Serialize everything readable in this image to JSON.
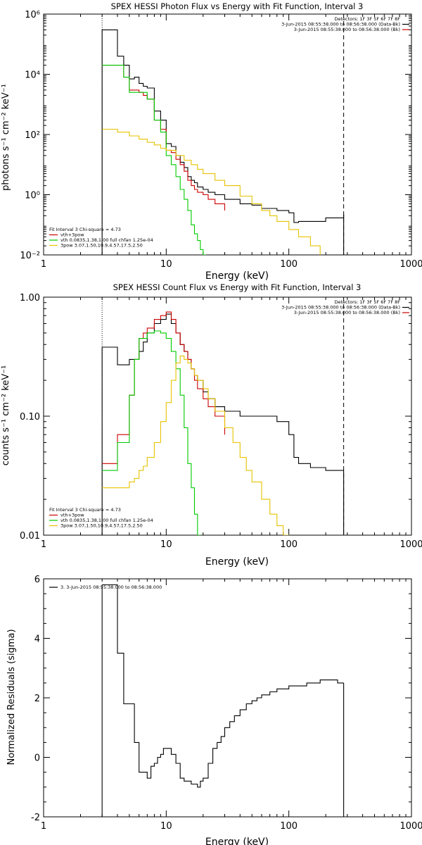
{
  "colors": {
    "total": "#000000",
    "sum": "#cc0000",
    "vth": "#00cc00",
    "pow": "#e6c200"
  },
  "chart_data": [
    {
      "type": "line",
      "title": "SPEX HESSI Photon Flux vs Energy with Fit Function, Interval 3",
      "xlabel": "Energy (keV)",
      "ylabel": "photons s⁻¹ cm⁻² keV⁻¹",
      "xscale": "log",
      "yscale": "log",
      "xlim": [
        1,
        1000
      ],
      "ylim": [
        0.01,
        1000000
      ],
      "xticks": [
        {
          "v": 1,
          "label": "1"
        },
        {
          "v": 10,
          "label": "10"
        },
        {
          "v": 100,
          "label": "100"
        },
        {
          "v": 1000,
          "label": "1000"
        }
      ],
      "yticks": [
        {
          "v": 0.01,
          "label": "10⁻²"
        },
        {
          "v": 1,
          "label": "10⁰"
        },
        {
          "v": 100,
          "label": "10²"
        },
        {
          "v": 10000,
          "label": "10⁴"
        },
        {
          "v": 1000000,
          "label": "10⁶"
        }
      ],
      "vlines": [
        {
          "x": 3,
          "style": "dotted",
          "color": "#000000"
        },
        {
          "x": 280,
          "style": "dashed",
          "color": "#000000"
        }
      ],
      "top_legend": [
        {
          "text": "Detectors: 1F 3F 5F 6F 7F 8F",
          "color": ""
        },
        {
          "text": "3-Jun-2015 08:55:38.000 to 08:56:38.000 (Data-Bk)",
          "color": "#000000"
        },
        {
          "text": "3-Jun-2015 08:55:38.000 to 08:56:38.000 (Bk)",
          "color": "#cc0000"
        }
      ],
      "fit_legend": [
        {
          "text": "Fit Interval 3   Chi-square = 4.73",
          "color": ""
        },
        {
          "text": "vth+3pow",
          "color": "#cc0000"
        },
        {
          "text": "vth 0.0835,1.38,1.00  full chfan 1.25e-04",
          "color": "#00cc00"
        },
        {
          "text": "3pow 3.07,1.50,10.9,4.57,17.5,2.50",
          "color": "#e6c200"
        }
      ],
      "series": [
        {
          "color": "#000000",
          "x": [
            3,
            3.5,
            4,
            4.5,
            5,
            5.5,
            6,
            6.5,
            7,
            8,
            9,
            10,
            11,
            12,
            13,
            14,
            15,
            16,
            17,
            18,
            20,
            22,
            25,
            30,
            40,
            50,
            60,
            80,
            100,
            110,
            120,
            150,
            200,
            280
          ],
          "y": [
            300000,
            300000,
            40000,
            20000,
            7000,
            8000,
            5000,
            4000,
            3500,
            600,
            300,
            50,
            40,
            20,
            12,
            8,
            4,
            3,
            2.5,
            1.8,
            1.5,
            1.2,
            1.0,
            0.7,
            0.5,
            0.45,
            0.35,
            0.3,
            0.25,
            0.12,
            0.13,
            0.13,
            0.17,
            0.22
          ]
        },
        {
          "color": "#cc0000",
          "x": [
            3,
            3.5,
            4,
            4.5,
            5,
            5.5,
            6,
            6.5,
            7,
            8,
            9,
            10,
            11,
            12,
            13,
            14,
            15,
            16,
            17,
            18,
            20,
            22,
            25,
            30
          ],
          "y": [
            20000,
            20000,
            20000,
            8000,
            3000,
            3000,
            2500,
            2000,
            1500,
            300,
            150,
            30,
            25,
            15,
            10,
            6,
            3,
            2,
            1.5,
            1.2,
            1.0,
            0.7,
            0.5,
            0.3
          ]
        },
        {
          "color": "#00cc00",
          "x": [
            3,
            3.5,
            4,
            4.5,
            5,
            6,
            7,
            8,
            9,
            10,
            11,
            12,
            13,
            14,
            15,
            16,
            17,
            18,
            19,
            20,
            21
          ],
          "y": [
            20000,
            20000,
            20000,
            8000,
            2500,
            2500,
            1500,
            300,
            120,
            20,
            10,
            4,
            1.5,
            0.7,
            0.3,
            0.1,
            0.05,
            0.03,
            0.015,
            0.01,
            0.008
          ]
        },
        {
          "color": "#e6c200",
          "x": [
            3,
            3.5,
            4,
            5,
            6,
            7,
            8,
            9,
            10,
            12,
            14,
            16,
            18,
            20,
            25,
            30,
            40,
            50,
            60,
            70,
            80,
            100,
            120,
            150,
            180
          ],
          "y": [
            150,
            150,
            120,
            90,
            70,
            55,
            45,
            35,
            30,
            20,
            14,
            10,
            7,
            5,
            3,
            2,
            0.9,
            0.5,
            0.3,
            0.2,
            0.13,
            0.07,
            0.04,
            0.02,
            0.01
          ]
        }
      ]
    },
    {
      "type": "line",
      "title": "SPEX HESSI Count Flux vs Energy with Fit Function, Interval 3",
      "xlabel": "Energy (keV)",
      "ylabel": "counts s⁻¹ cm⁻² keV⁻¹",
      "xscale": "log",
      "yscale": "log",
      "xlim": [
        1,
        1000
      ],
      "ylim": [
        0.01,
        1.0
      ],
      "xticks": [
        {
          "v": 1,
          "label": "1"
        },
        {
          "v": 10,
          "label": "10"
        },
        {
          "v": 100,
          "label": "100"
        },
        {
          "v": 1000,
          "label": "1000"
        }
      ],
      "yticks": [
        {
          "v": 0.01,
          "label": "0.01"
        },
        {
          "v": 0.1,
          "label": "0.10"
        },
        {
          "v": 1.0,
          "label": "1.00"
        }
      ],
      "vlines": [
        {
          "x": 3,
          "style": "dotted",
          "color": "#000000"
        },
        {
          "x": 280,
          "style": "dashed",
          "color": "#000000"
        }
      ],
      "top_legend": [
        {
          "text": "Detectors: 1F 3F 5F 6F 7F 8F",
          "color": ""
        },
        {
          "text": "3-Jun-2015 08:55:38.000 to 08:56:38.000 (Data-Bk)",
          "color": "#000000"
        },
        {
          "text": "3-Jun-2015 08:55:38.000 to 08:56:38.000 (Bk)",
          "color": "#cc0000"
        }
      ],
      "fit_legend": [
        {
          "text": "Fit Interval 3   Chi-square = 4.73",
          "color": ""
        },
        {
          "text": "vth+3pow",
          "color": "#cc0000"
        },
        {
          "text": "vth 0.0835,1.38,1.00  full chfan 1.25e-04",
          "color": "#00cc00"
        },
        {
          "text": "3pow 3.07,1.50,10.9,4.57,17.5,2.50",
          "color": "#e6c200"
        }
      ],
      "series": [
        {
          "color": "#000000",
          "x": [
            3,
            3.5,
            4,
            4.5,
            5,
            5.5,
            6,
            6.5,
            7,
            8,
            9,
            10,
            11,
            12,
            13,
            14,
            15,
            16,
            17,
            18,
            20,
            22,
            25,
            30,
            40,
            50,
            60,
            80,
            90,
            100,
            110,
            120,
            150,
            200,
            280
          ],
          "y": [
            0.38,
            0.38,
            0.27,
            0.27,
            0.3,
            0.3,
            0.35,
            0.42,
            0.5,
            0.6,
            0.65,
            0.72,
            0.6,
            0.5,
            0.4,
            0.35,
            0.3,
            0.25,
            0.22,
            0.2,
            0.16,
            0.14,
            0.12,
            0.11,
            0.1,
            0.1,
            0.1,
            0.09,
            0.09,
            0.07,
            0.045,
            0.04,
            0.037,
            0.035,
            0.033
          ]
        },
        {
          "color": "#cc0000",
          "x": [
            3,
            3.5,
            4,
            4.5,
            5,
            5.5,
            6,
            6.5,
            7,
            8,
            9,
            10,
            11,
            12,
            13,
            14,
            15,
            16,
            17,
            18,
            20,
            22,
            25,
            30
          ],
          "y": [
            0.04,
            0.04,
            0.07,
            0.07,
            0.15,
            0.3,
            0.45,
            0.5,
            0.55,
            0.65,
            0.7,
            0.75,
            0.65,
            0.5,
            0.4,
            0.35,
            0.3,
            0.25,
            0.2,
            0.17,
            0.14,
            0.12,
            0.1,
            0.07
          ]
        },
        {
          "color": "#00cc00",
          "x": [
            3,
            3.5,
            4,
            4.5,
            5,
            5.5,
            6,
            7,
            8,
            9,
            10,
            11,
            12,
            13,
            14,
            15,
            16,
            17,
            18,
            19
          ],
          "y": [
            0.035,
            0.035,
            0.06,
            0.06,
            0.15,
            0.3,
            0.45,
            0.5,
            0.52,
            0.5,
            0.45,
            0.35,
            0.25,
            0.15,
            0.08,
            0.04,
            0.025,
            0.015,
            0.01,
            0.008
          ]
        },
        {
          "color": "#e6c200",
          "x": [
            3,
            3.5,
            4,
            4.5,
            5,
            5.5,
            6,
            6.5,
            7,
            8,
            9,
            10,
            11,
            12,
            13,
            14,
            15,
            16,
            17,
            18,
            20,
            22,
            25,
            30,
            35,
            40,
            45,
            50,
            60,
            70,
            80,
            90,
            100
          ],
          "y": [
            0.025,
            0.025,
            0.025,
            0.025,
            0.028,
            0.03,
            0.035,
            0.038,
            0.045,
            0.06,
            0.09,
            0.13,
            0.2,
            0.28,
            0.32,
            0.3,
            0.28,
            0.25,
            0.22,
            0.2,
            0.17,
            0.14,
            0.11,
            0.08,
            0.06,
            0.045,
            0.035,
            0.028,
            0.02,
            0.015,
            0.012,
            0.01,
            0.008
          ]
        }
      ]
    },
    {
      "type": "line",
      "title": "",
      "xlabel": "Energy (keV)",
      "ylabel": "Normalized Residuals (sigma)",
      "xscale": "log",
      "yscale": "linear",
      "xlim": [
        1,
        1000
      ],
      "ylim": [
        -2,
        6
      ],
      "xticks": [
        {
          "v": 1,
          "label": "1"
        },
        {
          "v": 10,
          "label": "10"
        },
        {
          "v": 100,
          "label": "100"
        },
        {
          "v": 1000,
          "label": "1000"
        }
      ],
      "yticks": [
        {
          "v": -2,
          "label": "-2"
        },
        {
          "v": 0,
          "label": "0"
        },
        {
          "v": 2,
          "label": "2"
        },
        {
          "v": 4,
          "label": "4"
        },
        {
          "v": 6,
          "label": "6"
        }
      ],
      "vlines": [],
      "top_legend": [
        {
          "text": "3.  3-Jun-2015 08:55:38.000 to 08:56:38.000",
          "color": "#000000"
        }
      ],
      "fit_legend": [],
      "series": [
        {
          "color": "#000000",
          "x": [
            3,
            3.5,
            4,
            4.5,
            5,
            5.5,
            6,
            6.5,
            7,
            7.5,
            8,
            8.5,
            9,
            9.5,
            10,
            11,
            12,
            13,
            14,
            15,
            16,
            17,
            18,
            19,
            20,
            22,
            24,
            26,
            28,
            30,
            33,
            36,
            40,
            45,
            50,
            55,
            60,
            70,
            80,
            90,
            100,
            120,
            140,
            160,
            180,
            200,
            250,
            280
          ],
          "y": [
            5.8,
            5.8,
            3.5,
            1.8,
            1.8,
            0.5,
            -0.5,
            -0.5,
            -0.7,
            -0.3,
            -0.2,
            0.0,
            0.1,
            0.3,
            0.3,
            0.1,
            -0.2,
            -0.7,
            -0.8,
            -0.8,
            -0.9,
            -0.9,
            -1.0,
            -0.8,
            -0.7,
            -0.2,
            0.3,
            0.5,
            0.7,
            1.0,
            1.2,
            1.4,
            1.6,
            1.8,
            1.9,
            2.0,
            2.1,
            2.2,
            2.3,
            2.3,
            2.4,
            2.4,
            2.5,
            2.5,
            2.6,
            2.6,
            2.5,
            2.5
          ]
        }
      ]
    }
  ]
}
